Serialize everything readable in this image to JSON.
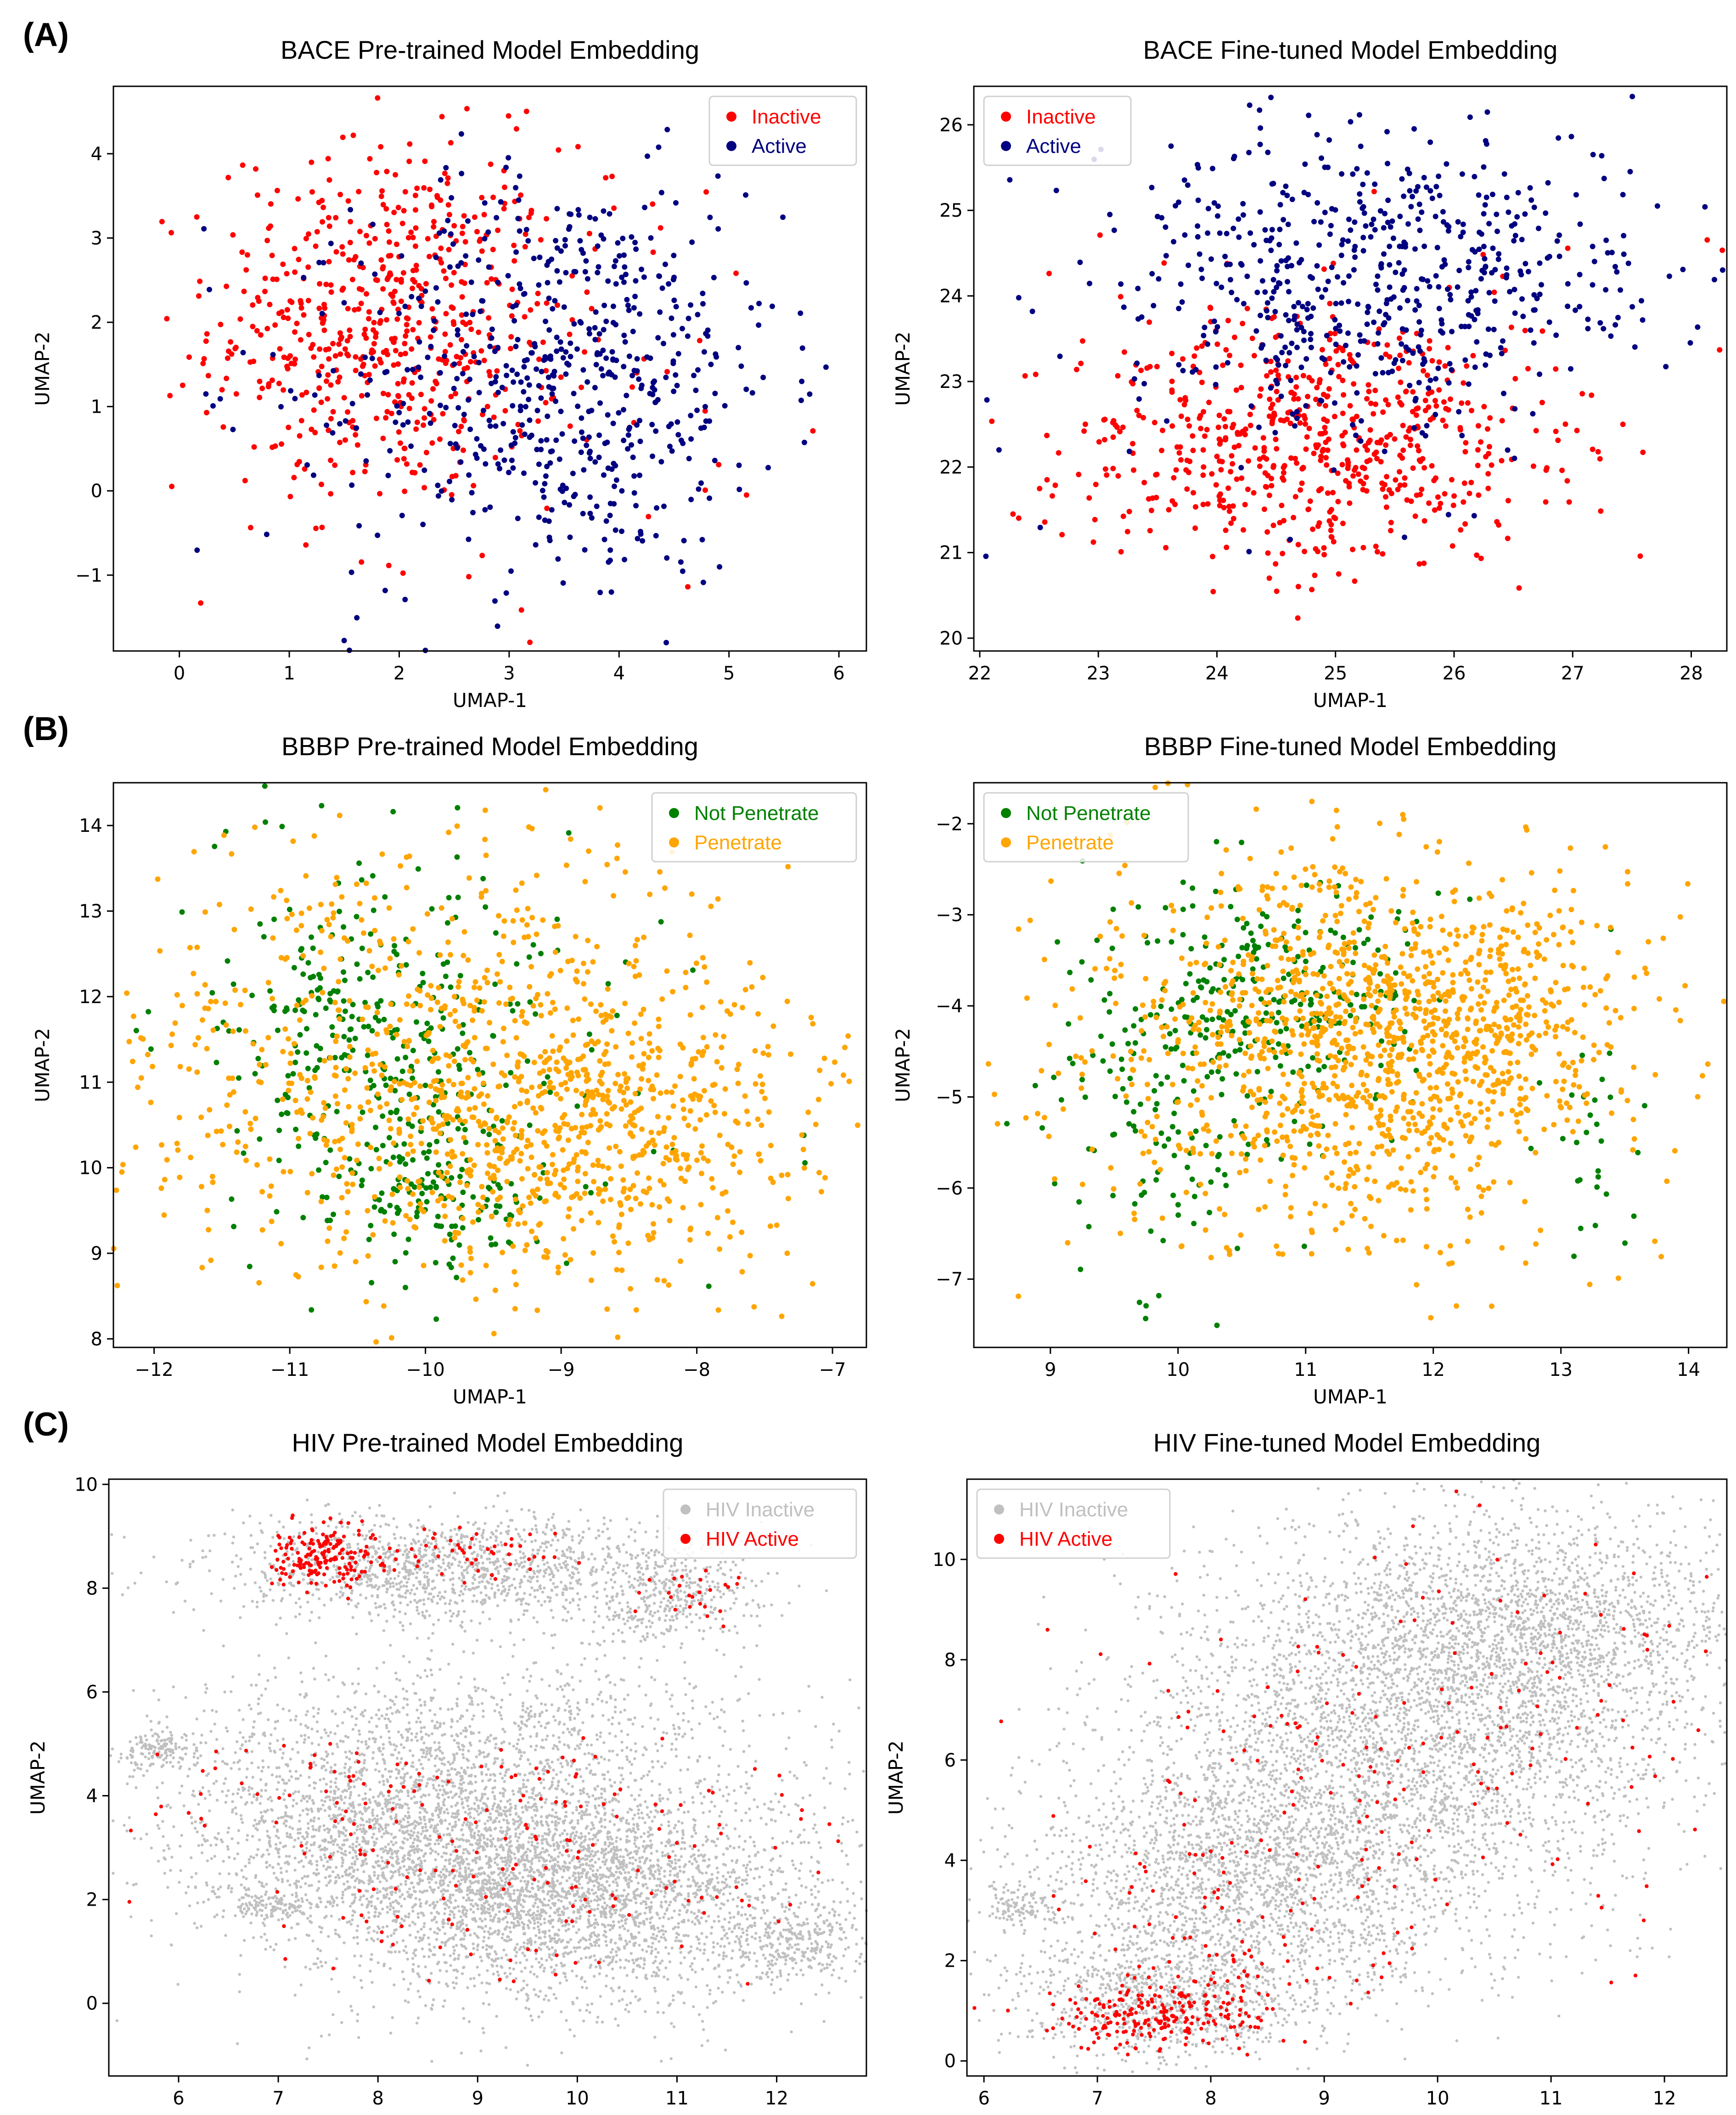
{
  "panel_letters": [
    "(A)",
    "(B)",
    "(C)"
  ],
  "chart_data": [
    {
      "type": "scatter",
      "title": "BACE Pre-trained Model Embedding",
      "xlabel": "UMAP-1",
      "ylabel": "UMAP-2",
      "xlim": [
        -0.6,
        6.25
      ],
      "ylim": [
        -1.9,
        4.8
      ],
      "xticks": [
        0,
        1,
        2,
        3,
        4,
        5,
        6
      ],
      "yticks": [
        -1,
        0,
        1,
        2,
        3,
        4
      ],
      "legend": "top-right",
      "series": [
        {
          "name": "Inactive",
          "color": "#ff0000",
          "clusters": [
            {
              "cx": 1.9,
              "cy": 2.0,
              "sx": 0.8,
              "sy": 1.05,
              "n": 560
            },
            {
              "cx": 2.9,
              "cy": 1.5,
              "sx": 1.3,
              "sy": 1.5,
              "n": 70
            }
          ]
        },
        {
          "name": "Active",
          "color": "#000080",
          "clusters": [
            {
              "cx": 3.55,
              "cy": 1.35,
              "sx": 0.95,
              "sy": 1.2,
              "n": 560
            },
            {
              "cx": 2.6,
              "cy": 1.2,
              "sx": 1.3,
              "sy": 1.5,
              "n": 60
            }
          ]
        }
      ]
    },
    {
      "type": "scatter",
      "title": "BACE Fine-tuned Model Embedding",
      "xlabel": "UMAP-1",
      "ylabel": "UMAP-2",
      "xlim": [
        21.95,
        28.3
      ],
      "ylim": [
        19.85,
        26.45
      ],
      "xticks": [
        22,
        23,
        24,
        25,
        26,
        27,
        28
      ],
      "yticks": [
        20,
        21,
        22,
        23,
        24,
        25,
        26
      ],
      "legend": "top-left",
      "series": [
        {
          "name": "Inactive",
          "color": "#ff0000",
          "clusters": [
            {
              "cx": 24.8,
              "cy": 22.3,
              "sx": 1.05,
              "sy": 0.75,
              "n": 620
            },
            {
              "cx": 25.2,
              "cy": 23.0,
              "sx": 1.4,
              "sy": 1.2,
              "n": 40
            }
          ]
        },
        {
          "name": "Active",
          "color": "#000080",
          "clusters": [
            {
              "cx": 25.4,
              "cy": 24.2,
              "sx": 1.15,
              "sy": 0.85,
              "n": 580
            },
            {
              "cx": 24.5,
              "cy": 23.3,
              "sx": 1.5,
              "sy": 1.2,
              "n": 40
            }
          ]
        }
      ]
    },
    {
      "type": "scatter",
      "title": "BBBP Pre-trained Model Embedding",
      "xlabel": "UMAP-1",
      "ylabel": "UMAP-2",
      "xlim": [
        -12.3,
        -6.75
      ],
      "ylim": [
        7.9,
        14.5
      ],
      "xticks": [
        -12,
        -11,
        -10,
        -9,
        -8,
        -7
      ],
      "yticks": [
        8,
        9,
        10,
        11,
        12,
        13,
        14
      ],
      "xtick_labels": [
        "−12",
        "−11",
        "−10",
        "−9",
        "−8",
        "−7"
      ],
      "legend": "top-right",
      "series": [
        {
          "name": "Not Penetrate",
          "color": "#008000",
          "clusters": [
            {
              "cx": -10.4,
              "cy": 11.4,
              "sx": 0.55,
              "sy": 1.1,
              "n": 300
            },
            {
              "cx": -9.8,
              "cy": 9.7,
              "sx": 0.45,
              "sy": 0.45,
              "n": 120
            },
            {
              "cx": -10.0,
              "cy": 11.5,
              "sx": 1.0,
              "sy": 1.4,
              "n": 60
            }
          ]
        },
        {
          "name": "Penetrate",
          "color": "#ffa500",
          "clusters": [
            {
              "cx": -8.8,
              "cy": 10.5,
              "sx": 0.75,
              "sy": 0.85,
              "n": 600
            },
            {
              "cx": -10.2,
              "cy": 11.0,
              "sx": 1.1,
              "sy": 1.3,
              "n": 500
            },
            {
              "cx": -9.5,
              "cy": 11.5,
              "sx": 1.4,
              "sy": 1.5,
              "n": 200
            }
          ]
        }
      ]
    },
    {
      "type": "scatter",
      "title": "BBBP Fine-tuned Model Embedding",
      "xlabel": "UMAP-1",
      "ylabel": "UMAP-2",
      "xlim": [
        8.4,
        14.3
      ],
      "ylim": [
        -7.75,
        -1.55
      ],
      "xticks": [
        9,
        10,
        11,
        12,
        13,
        14
      ],
      "yticks": [
        -7,
        -6,
        -5,
        -4,
        -3,
        -2
      ],
      "ytick_labels": [
        "−7",
        "−6",
        "−5",
        "−4",
        "−3",
        "−2"
      ],
      "legend": "top-left",
      "series": [
        {
          "name": "Not Penetrate",
          "color": "#008000",
          "clusters": [
            {
              "cx": 10.7,
              "cy": -3.9,
              "sx": 0.6,
              "sy": 0.7,
              "n": 260
            },
            {
              "cx": 9.9,
              "cy": -5.2,
              "sx": 0.5,
              "sy": 1.0,
              "n": 120
            },
            {
              "cx": 13.2,
              "cy": -5.5,
              "sx": 0.2,
              "sy": 0.6,
              "n": 30
            }
          ]
        },
        {
          "name": "Penetrate",
          "color": "#ffa500",
          "clusters": [
            {
              "cx": 11.5,
              "cy": -4.5,
              "sx": 0.9,
              "sy": 1.0,
              "n": 900
            },
            {
              "cx": 12.3,
              "cy": -4.1,
              "sx": 0.6,
              "sy": 0.6,
              "n": 300
            },
            {
              "cx": 10.8,
              "cy": -4.3,
              "sx": 1.3,
              "sy": 1.3,
              "n": 250
            }
          ]
        }
      ]
    },
    {
      "type": "scatter",
      "title": "HIV Pre-trained Model Embedding",
      "xlabel": "UMAP-1",
      "ylabel": "UMAP-2",
      "xlim": [
        5.3,
        12.9
      ],
      "ylim": [
        -1.4,
        10.1
      ],
      "xticks": [
        6,
        7,
        8,
        9,
        10,
        11,
        12
      ],
      "yticks": [
        0,
        2,
        4,
        6,
        8,
        10
      ],
      "legend": "top-right",
      "series": [
        {
          "name": "HIV Inactive",
          "color": "#c0c0c0",
          "clusters": [
            {
              "cx": 9.8,
              "cy": 2.2,
              "sx": 1.3,
              "sy": 1.1,
              "n": 3500
            },
            {
              "cx": 8.2,
              "cy": 3.5,
              "sx": 1.2,
              "sy": 1.0,
              "n": 1800
            },
            {
              "cx": 8.6,
              "cy": 8.4,
              "sx": 1.1,
              "sy": 0.5,
              "n": 1300
            },
            {
              "cx": 10.9,
              "cy": 7.8,
              "sx": 0.45,
              "sy": 0.5,
              "n": 400
            },
            {
              "cx": 5.8,
              "cy": 4.9,
              "sx": 0.2,
              "sy": 0.2,
              "n": 150
            },
            {
              "cx": 6.9,
              "cy": 1.9,
              "sx": 0.25,
              "sy": 0.15,
              "n": 120
            },
            {
              "cx": 12.2,
              "cy": 1.2,
              "sx": 0.35,
              "sy": 0.4,
              "n": 300
            },
            {
              "cx": 9.0,
              "cy": 5.3,
              "sx": 1.6,
              "sy": 0.7,
              "n": 700
            }
          ]
        },
        {
          "name": "HIV Active",
          "color": "#ff0000",
          "clusters": [
            {
              "cx": 7.45,
              "cy": 8.6,
              "sx": 0.25,
              "sy": 0.3,
              "n": 180
            },
            {
              "cx": 8.8,
              "cy": 8.7,
              "sx": 0.6,
              "sy": 0.3,
              "n": 50
            },
            {
              "cx": 9.6,
              "cy": 2.8,
              "sx": 1.5,
              "sy": 1.2,
              "n": 160
            },
            {
              "cx": 7.5,
              "cy": 4.0,
              "sx": 0.9,
              "sy": 0.6,
              "n": 40
            },
            {
              "cx": 11.0,
              "cy": 7.8,
              "sx": 0.3,
              "sy": 0.3,
              "n": 25
            }
          ]
        }
      ]
    },
    {
      "type": "scatter",
      "title": "HIV Fine-tuned Model Embedding",
      "xlabel": "UMAP-1",
      "ylabel": "UMAP-2",
      "xlim": [
        5.85,
        12.55
      ],
      "ylim": [
        -0.3,
        11.6
      ],
      "xticks": [
        6,
        7,
        8,
        9,
        10,
        11,
        12
      ],
      "yticks": [
        0,
        2,
        4,
        6,
        8,
        10
      ],
      "legend": "top-left",
      "series": [
        {
          "name": "HIV Inactive",
          "color": "#c0c0c0",
          "clusters": [
            {
              "cx": 9.8,
              "cy": 6.8,
              "sx": 1.2,
              "sy": 1.8,
              "n": 3200
            },
            {
              "cx": 8.4,
              "cy": 3.6,
              "sx": 1.0,
              "sy": 1.3,
              "n": 2200
            },
            {
              "cx": 10.9,
              "cy": 8.7,
              "sx": 0.9,
              "sy": 1.1,
              "n": 1400
            },
            {
              "cx": 7.6,
              "cy": 1.3,
              "sx": 0.7,
              "sy": 0.6,
              "n": 800
            },
            {
              "cx": 6.3,
              "cy": 3.1,
              "sx": 0.2,
              "sy": 0.2,
              "n": 120
            }
          ]
        },
        {
          "name": "HIV Active",
          "color": "#ff0000",
          "clusters": [
            {
              "cx": 7.5,
              "cy": 0.9,
              "sx": 0.45,
              "sy": 0.35,
              "n": 220
            },
            {
              "cx": 8.3,
              "cy": 1.8,
              "sx": 0.7,
              "sy": 0.6,
              "n": 60
            },
            {
              "cx": 9.8,
              "cy": 6.2,
              "sx": 1.4,
              "sy": 2.2,
              "n": 170
            },
            {
              "cx": 7.8,
              "cy": 4.2,
              "sx": 0.8,
              "sy": 1.3,
              "n": 40
            }
          ]
        }
      ]
    }
  ]
}
